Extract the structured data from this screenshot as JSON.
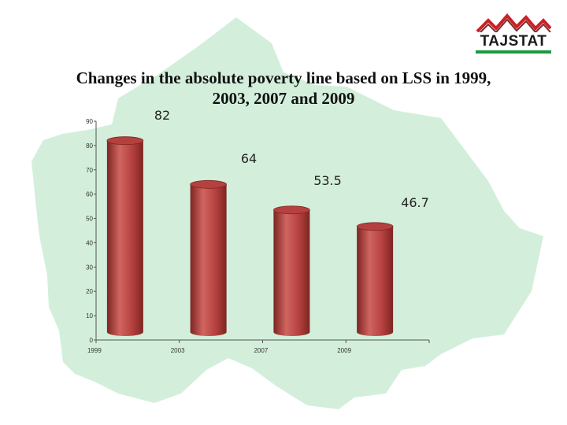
{
  "header": {
    "logo_text": "TAJSTAT",
    "title_line1": "Changes in the absolute poverty line based on LSS in 1999,",
    "title_line2": "2003, 2007 and 2009"
  },
  "colors": {
    "bar": "#b5413f",
    "bar_dark": "#7d2522",
    "bar_light": "#d06560",
    "map": "#d3efdb",
    "logo_red": "#cc2027",
    "logo_green": "#1a9a3f"
  },
  "chart_data": {
    "type": "bar",
    "title": "Changes in the absolute poverty line based on LSS in 1999, 2003, 2007 and 2009",
    "categories": [
      "1999",
      "2003",
      "2007",
      "2009"
    ],
    "values": [
      82,
      64,
      53.5,
      46.7
    ],
    "value_labels": [
      "82",
      "64",
      "53.5",
      "46.7"
    ],
    "xlabel": "",
    "ylabel": "",
    "ylim": [
      0,
      90
    ],
    "yticks": [
      "0",
      "10",
      "20",
      "30",
      "40",
      "50",
      "60",
      "70",
      "80",
      "90"
    ],
    "grid": false,
    "legend": "none"
  }
}
